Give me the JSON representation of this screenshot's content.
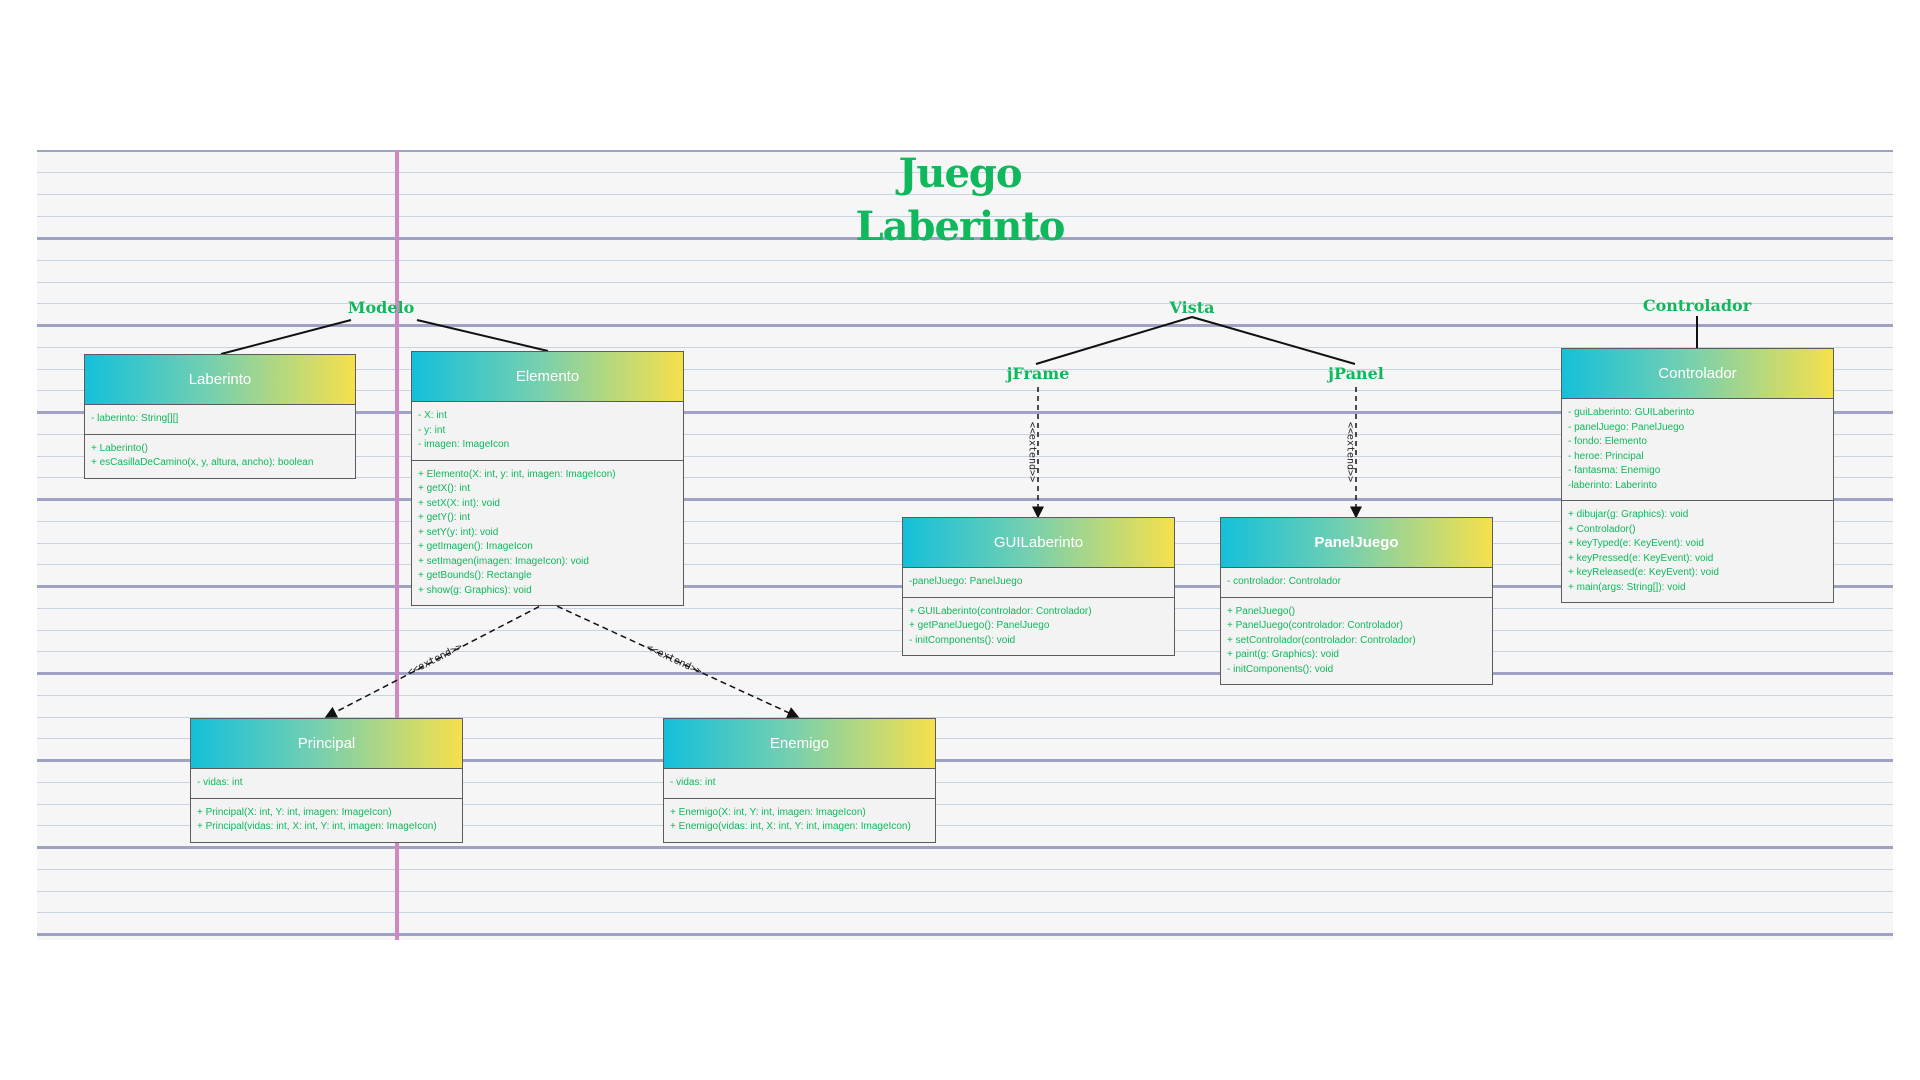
{
  "title": {
    "line1": "Juego",
    "line2": "Laberinto"
  },
  "packages": {
    "modelo": "Modelo",
    "vista": "Vista",
    "controlador": "Controlador",
    "jframe": "jFrame",
    "jpanel": "jPanel"
  },
  "extend_label": "<<extend>>",
  "classes": {
    "laberinto": {
      "name": "Laberinto",
      "attributes": [
        "- laberinto: String[][]"
      ],
      "methods": [
        "+ Laberinto()",
        "+ esCasillaDeCamino(x, y, altura, ancho): boolean"
      ]
    },
    "elemento": {
      "name": "Elemento",
      "attributes": [
        "- X: int",
        "- y: int",
        "- imagen: ImageIcon"
      ],
      "methods": [
        "+ Elemento(X: int, y: int, imagen: ImageIcon)",
        "+ getX(): int",
        "+ setX(X: int): void",
        "+ getY(): int",
        "+ setY(y: int): void",
        "+ getImagen(): ImageIcon",
        "+ setImagen(imagen: ImageIcon): void",
        "+ getBounds(): Rectangle",
        "+ show(g: Graphics): void"
      ]
    },
    "principal": {
      "name": "Principal",
      "attributes": [
        "- vidas: int"
      ],
      "methods": [
        "+ Principal(X: int, Y: int, imagen: ImageIcon)",
        "+ Principal(vidas: int, X: int, Y: int, imagen: ImageIcon)"
      ]
    },
    "enemigo": {
      "name": "Enemigo",
      "attributes": [
        "- vidas: int"
      ],
      "methods": [
        "+ Enemigo(X: int, Y: int, imagen: ImageIcon)",
        "+ Enemigo(vidas: int, X: int, Y: int, imagen: ImageIcon)"
      ]
    },
    "guilaberinto": {
      "name": "GUILaberinto",
      "attributes": [
        "-panelJuego: PanelJuego"
      ],
      "methods": [
        "+ GUILaberinto(controlador: Controlador)",
        "+ getPanelJuego(): PanelJuego",
        "- initComponents(): void"
      ]
    },
    "paneljuego": {
      "name": "PanelJuego",
      "attributes": [
        "- controlador: Controlador"
      ],
      "methods": [
        "+ PanelJuego()",
        "+ PanelJuego(controlador: Controlador)",
        "+ setControlador(controlador: Controlador)",
        "+ paint(g: Graphics): void",
        "- initComponents(): void"
      ]
    },
    "controlador": {
      "name": "Controlador",
      "attributes": [
        "- guiLaberinto: GUILaberinto",
        "- panelJuego: PanelJuego",
        "- fondo: Elemento",
        "- heroe: Principal",
        "- fantasma: Enemigo",
        "-laberinto: Laberinto"
      ],
      "methods": [
        "+ dibujar(g: Graphics): void",
        "+ Controlador()",
        "+ keyTyped(e: KeyEvent): void",
        "+ keyPressed(e: KeyEvent): void",
        "+ keyReleased(e: KeyEvent): void",
        "+ main(args: String[]): void"
      ]
    }
  },
  "colors": {
    "accent_green": "#0fb85c",
    "header_gradient_start": "#14c0da",
    "header_gradient_end": "#f6e04c",
    "margin_line": "#d486c2",
    "ruled_line": "#9ea3c4"
  }
}
